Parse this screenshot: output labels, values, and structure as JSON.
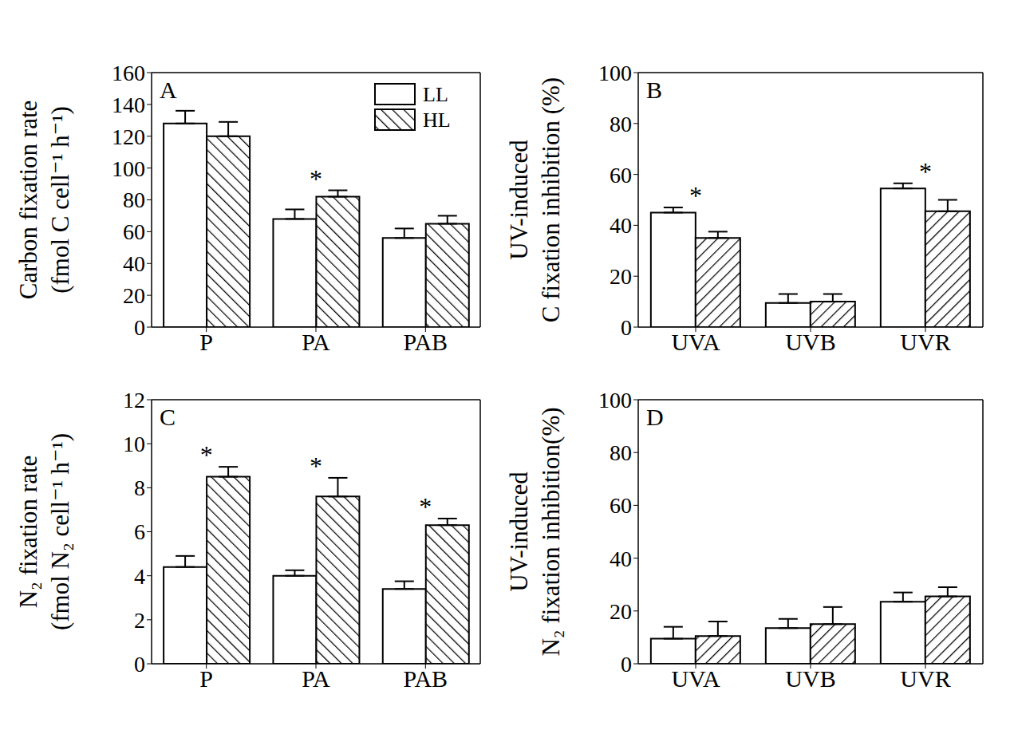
{
  "chart_data": [
    {
      "type": "bar",
      "title": "A",
      "ylabel": [
        "Carbon fixation rate",
        "(fmol C cell⁻¹ h⁻¹)"
      ],
      "categories": [
        "P",
        "PA",
        "PAB"
      ],
      "series": [
        {
          "name": "LL",
          "color": "#ffffff",
          "values": [
            128,
            68,
            56
          ],
          "errors": [
            8,
            6,
            6
          ]
        },
        {
          "name": "HL",
          "color": "#ffffff",
          "values": [
            120,
            82,
            65
          ],
          "errors": [
            9,
            4,
            5
          ]
        }
      ],
      "ylim": [
        0,
        160
      ],
      "yticks": [
        0,
        20,
        40,
        60,
        80,
        100,
        120,
        140,
        160
      ],
      "legend": "upper right",
      "annotations": [
        {
          "text": "*",
          "category": "PA"
        }
      ]
    },
    {
      "type": "bar",
      "title": "B",
      "ylabel": [
        "UV-induced",
        "C fixation inhibition (%)"
      ],
      "categories": [
        "UVA",
        "UVB",
        "UVR"
      ],
      "series": [
        {
          "name": "LL",
          "color": "#ffffff",
          "values": [
            45,
            9.5,
            54.5
          ],
          "errors": [
            2,
            3.5,
            2
          ]
        },
        {
          "name": "HL",
          "color": "#ffffff",
          "values": [
            35,
            10,
            45.5
          ],
          "errors": [
            2.5,
            3,
            4.5
          ]
        }
      ],
      "ylim": [
        0,
        100
      ],
      "yticks": [
        0,
        20,
        40,
        60,
        80,
        100
      ],
      "annotations": [
        {
          "text": "*",
          "category": "UVA"
        },
        {
          "text": "*",
          "category": "UVR"
        }
      ]
    },
    {
      "type": "bar",
      "title": "C",
      "ylabel": [
        "N₂ fixation rate",
        "(fmol N₂ cell⁻¹ h⁻¹)"
      ],
      "categories": [
        "P",
        "PA",
        "PAB"
      ],
      "series": [
        {
          "name": "LL",
          "color": "#ffffff",
          "values": [
            4.4,
            4.0,
            3.4
          ],
          "errors": [
            0.5,
            0.25,
            0.35
          ]
        },
        {
          "name": "HL",
          "color": "#ffffff",
          "values": [
            8.5,
            7.6,
            6.3
          ],
          "errors": [
            0.45,
            0.85,
            0.3
          ]
        }
      ],
      "ylim": [
        0,
        12
      ],
      "yticks": [
        0,
        2,
        4,
        6,
        8,
        10,
        12
      ],
      "annotations": [
        {
          "text": "*",
          "category": "P"
        },
        {
          "text": "*",
          "category": "PA"
        },
        {
          "text": "*",
          "category": "PAB"
        }
      ]
    },
    {
      "type": "bar",
      "title": "D",
      "ylabel": [
        "UV-induced",
        "N₂ fixation inhibition(%)"
      ],
      "categories": [
        "UVA",
        "UVB",
        "UVR"
      ],
      "series": [
        {
          "name": "LL",
          "color": "#ffffff",
          "values": [
            9.5,
            13.5,
            23.5
          ],
          "errors": [
            4.5,
            3.5,
            3.5
          ]
        },
        {
          "name": "HL",
          "color": "#ffffff",
          "values": [
            10.5,
            15,
            25.5
          ],
          "errors": [
            5.5,
            6.5,
            3.5
          ]
        }
      ],
      "ylim": [
        0,
        100
      ],
      "yticks": [
        0,
        20,
        40,
        60,
        80,
        100
      ]
    }
  ]
}
